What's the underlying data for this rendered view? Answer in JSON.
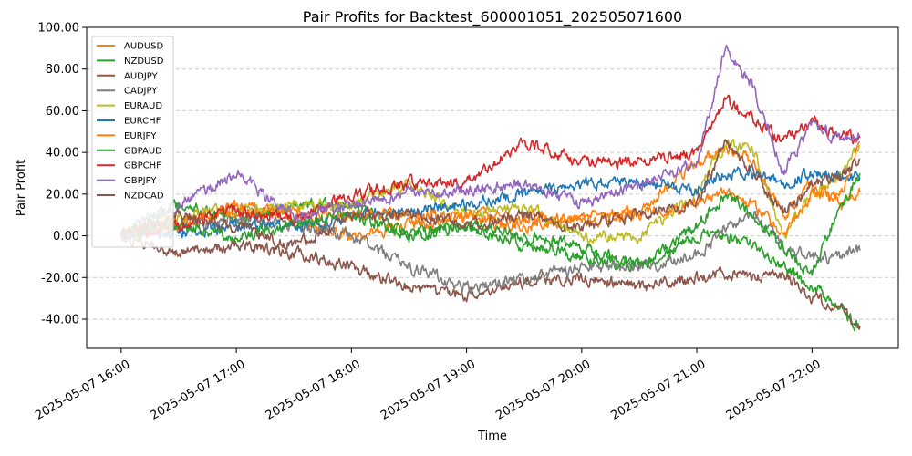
{
  "chart_data": {
    "type": "line",
    "title": "Pair Profits for Backtest_600001051_202505071600",
    "xlabel": "Time",
    "ylabel": "Pair Profit",
    "ylim": [
      -54,
      100
    ],
    "y_ticks": [
      "100.00",
      "80.00",
      "60.00",
      "40.00",
      "20.00",
      "0.00",
      "-20.00",
      "-40.00"
    ],
    "y_tick_values": [
      100,
      80,
      60,
      40,
      20,
      0,
      -20,
      -40
    ],
    "x_ticks": [
      "2025-05-07 16:00",
      "2025-05-07 17:00",
      "2025-05-07 18:00",
      "2025-05-07 19:00",
      "2025-05-07 20:00",
      "2025-05-07 21:00",
      "2025-05-07 22:00"
    ],
    "xlim": [
      "2025-05-07 15:42",
      "2025-05-07 22:45"
    ],
    "x_points": [
      "16:00",
      "16:30",
      "17:00",
      "17:30",
      "18:00",
      "18:30",
      "19:00",
      "19:30",
      "20:00",
      "20:30",
      "21:00",
      "21:15",
      "21:30",
      "21:45",
      "22:00",
      "22:15",
      "22:25"
    ],
    "grid": "y-dashed",
    "legend_position": "top-left",
    "series": [
      {
        "name": "AUDUSD",
        "color": "#ff7f0e",
        "values": [
          0,
          5,
          15,
          8,
          0,
          5,
          8,
          5,
          8,
          12,
          35,
          42,
          35,
          10,
          25,
          15,
          21
        ]
      },
      {
        "name": "NZDUSD",
        "color": "#2ca02c",
        "values": [
          0,
          15,
          8,
          15,
          15,
          0,
          5,
          -5,
          -10,
          -15,
          0,
          0,
          -5,
          -15,
          -25,
          -35,
          -44
        ]
      },
      {
        "name": "AUDJPY",
        "color": "#8c564b",
        "values": [
          0,
          -8,
          -5,
          -8,
          -15,
          -25,
          -28,
          -22,
          -20,
          -25,
          -20,
          -18,
          -20,
          -18,
          -30,
          -35,
          -43
        ]
      },
      {
        "name": "CADJPY",
        "color": "#7f7f7f",
        "values": [
          0,
          5,
          8,
          5,
          0,
          -15,
          -25,
          -20,
          -15,
          -15,
          -10,
          5,
          10,
          -5,
          -10,
          -10,
          -7
        ]
      },
      {
        "name": "EURAUD",
        "color": "#bcbd22",
        "values": [
          0,
          10,
          12,
          15,
          15,
          25,
          10,
          15,
          0,
          0,
          20,
          45,
          40,
          0,
          20,
          30,
          43
        ]
      },
      {
        "name": "EURCHF",
        "color": "#1f77b4",
        "values": [
          0,
          2,
          5,
          5,
          10,
          12,
          15,
          20,
          25,
          25,
          22,
          30,
          30,
          25,
          30,
          28,
          28
        ]
      },
      {
        "name": "EURJPY",
        "color": "#ff7f0e",
        "values": [
          0,
          5,
          12,
          10,
          10,
          10,
          10,
          8,
          8,
          10,
          15,
          20,
          15,
          0,
          20,
          20,
          45
        ]
      },
      {
        "name": "GBPAUD",
        "color": "#2ca02c",
        "values": [
          0,
          5,
          0,
          5,
          10,
          0,
          5,
          0,
          -5,
          -15,
          5,
          20,
          10,
          -5,
          -20,
          15,
          30
        ]
      },
      {
        "name": "GBPCHF",
        "color": "#d62728",
        "values": [
          0,
          5,
          12,
          8,
          20,
          25,
          25,
          45,
          35,
          35,
          40,
          65,
          55,
          45,
          55,
          48,
          47
        ]
      },
      {
        "name": "GBPJPY",
        "color": "#9467bd",
        "values": [
          0,
          15,
          30,
          10,
          15,
          20,
          22,
          25,
          15,
          25,
          35,
          92,
          70,
          30,
          55,
          45,
          48
        ]
      },
      {
        "name": "NZDCAD",
        "color": "#8c564b",
        "values": [
          0,
          10,
          5,
          -5,
          10,
          10,
          5,
          10,
          5,
          10,
          15,
          45,
          30,
          10,
          25,
          28,
          37
        ]
      }
    ]
  }
}
